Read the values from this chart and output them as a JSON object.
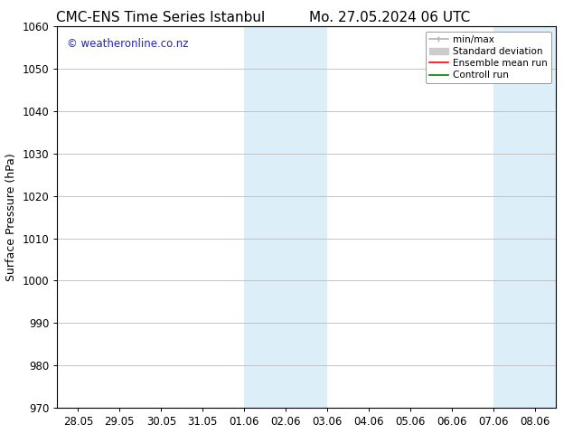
{
  "title_left": "CMC-ENS Time Series Istanbul",
  "title_right": "Mo. 27.05.2024 06 UTC",
  "ylabel": "Surface Pressure (hPa)",
  "ylim": [
    970,
    1060
  ],
  "yticks": [
    970,
    980,
    990,
    1000,
    1010,
    1020,
    1030,
    1040,
    1050,
    1060
  ],
  "xtick_labels": [
    "28.05",
    "29.05",
    "30.05",
    "31.05",
    "01.06",
    "02.06",
    "03.06",
    "04.06",
    "05.06",
    "06.06",
    "07.06",
    "08.06"
  ],
  "xtick_positions": [
    0,
    1,
    2,
    3,
    4,
    5,
    6,
    7,
    8,
    9,
    10,
    11
  ],
  "x_min": -0.5,
  "x_max": 11.5,
  "shaded_bands": [
    {
      "x_start": 4,
      "x_end": 6,
      "color": "#dceef8"
    },
    {
      "x_start": 10,
      "x_end": 11.5,
      "color": "#dceef8"
    }
  ],
  "legend_entries": [
    {
      "label": "min/max",
      "color": "#b0b0b0",
      "lw": 1.2
    },
    {
      "label": "Standard deviation",
      "color": "#cccccc",
      "lw": 6
    },
    {
      "label": "Ensemble mean run",
      "color": "#ff0000",
      "lw": 1.2
    },
    {
      "label": "Controll run",
      "color": "#008000",
      "lw": 1.2
    }
  ],
  "watermark_text": "© weatheronline.co.nz",
  "watermark_color": "#2222cc",
  "background_color": "#ffffff",
  "axes_bg_color": "#ffffff",
  "title_fontsize": 11,
  "label_fontsize": 9,
  "tick_fontsize": 8.5,
  "legend_fontsize": 7.5
}
